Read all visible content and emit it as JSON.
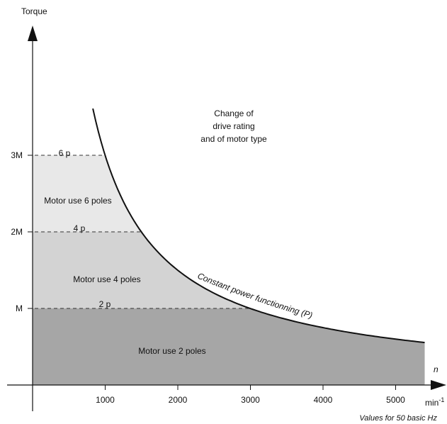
{
  "chart_data": {
    "type": "area",
    "ylabel": "Torque",
    "xlabel": "n",
    "x_unit": "min-1",
    "footnote": "Values for 50 basic Hz",
    "xlim": [
      0,
      5700
    ],
    "ylim": [
      0,
      4.6
    ],
    "xticks": [
      1000,
      2000,
      3000,
      4000,
      5000
    ],
    "xtick_labels": [
      "1000",
      "2000",
      "3000",
      "4000",
      "5000"
    ],
    "yticks": [
      1,
      2,
      3
    ],
    "ytick_labels": [
      "M",
      "2M",
      "3M"
    ],
    "curve": {
      "name": "Constant power functionning (P)",
      "formula": "T = 3000 / n",
      "x": [
        830,
        1000,
        1500,
        2000,
        2500,
        3000,
        3500,
        4000,
        4500,
        5000,
        5400
      ],
      "y": [
        3.61,
        3.0,
        2.0,
        1.5,
        1.2,
        1.0,
        0.857,
        0.75,
        0.667,
        0.6,
        0.556
      ]
    },
    "regions": [
      {
        "label": "Motor use 2 poles",
        "y_max": 1,
        "x_max": 5400,
        "color": "#a6a6a6"
      },
      {
        "label": "Motor use 4 poles",
        "y_max": 2,
        "color": "#d3d3d3"
      },
      {
        "label": "Motor use 6 poles",
        "y_max": 3,
        "color": "#e8e8e8"
      }
    ],
    "pole_levels": [
      {
        "label": "2 p",
        "y": 1
      },
      {
        "label": "4 p",
        "y": 2
      },
      {
        "label": "6 p",
        "y": 3
      }
    ],
    "annotation": [
      "Change of",
      "drive rating",
      "and of motor type"
    ]
  }
}
